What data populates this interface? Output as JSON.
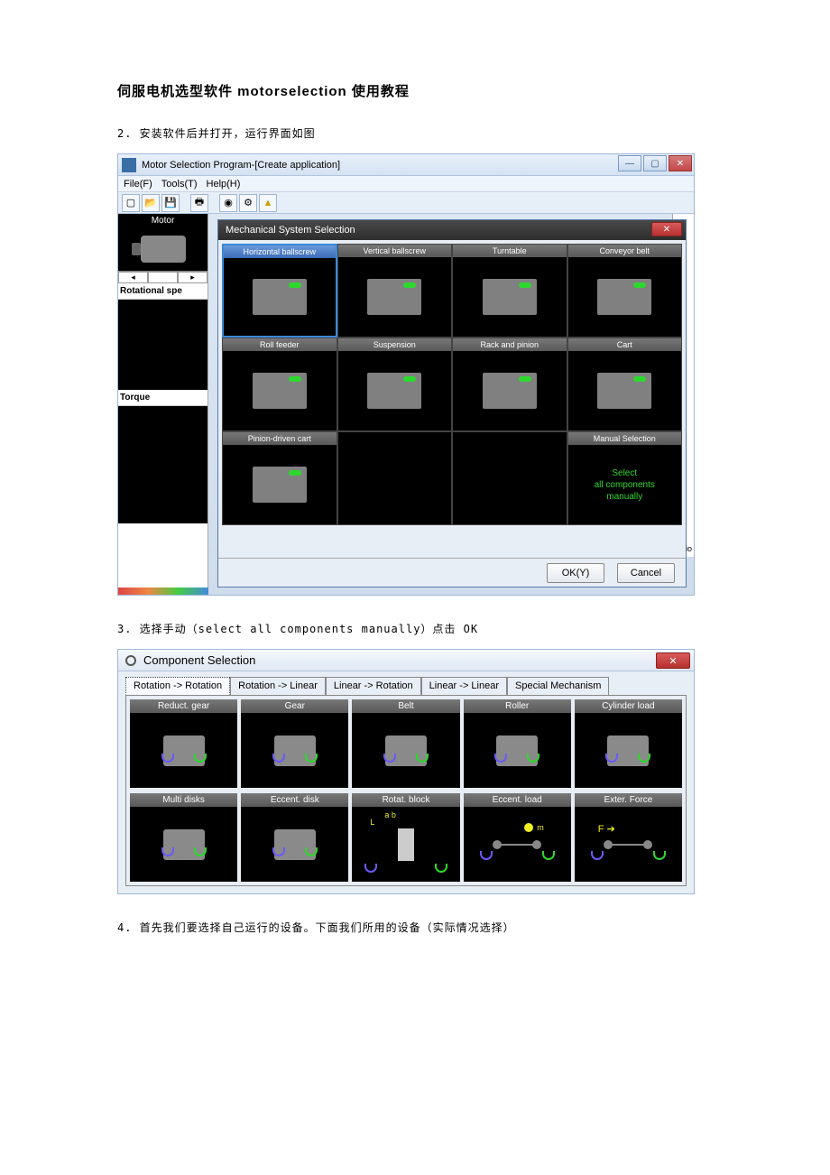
{
  "doc": {
    "title": "伺服电机选型软件 motorselection 使用教程",
    "step2": "2. 安装软件后并打开，运行界面如图",
    "step3": "3. 选择手动（select all components manually）点击 OK",
    "step4": "4. 首先我们要选择自己运行的设备。下面我们所用的设备（实际情况选择）"
  },
  "screenshot1": {
    "window_title": "Motor Selection Program-[Create application]",
    "menu": {
      "file": "File(F)",
      "tools": "Tools(T)",
      "help": "Help(H)"
    },
    "sidebar": {
      "motor_hdr": "Motor",
      "rot_label": "Rotational spe",
      "torque_label": "Torque"
    },
    "right_label": "ratio",
    "dialog": {
      "title": "Mechanical System Selection",
      "cells": [
        {
          "label": "Horizontal ballscrew",
          "selected": true
        },
        {
          "label": "Vertical ballscrew"
        },
        {
          "label": "Turntable"
        },
        {
          "label": "Conveyor belt"
        },
        {
          "label": "Roll feeder"
        },
        {
          "label": "Suspension"
        },
        {
          "label": "Rack and pinion"
        },
        {
          "label": "Cart"
        },
        {
          "label": "Pinion-driven cart"
        },
        {
          "label": "",
          "empty": true
        },
        {
          "label": "",
          "empty": true
        },
        {
          "label": "Manual Selection",
          "manual": true,
          "line1": "Select",
          "line2": "all components",
          "line3": "manually"
        }
      ],
      "ok": "OK(Y)",
      "cancel": "Cancel"
    },
    "colors": {
      "accent_green": "#2dd82d",
      "win_blue": "#3a6ab8"
    }
  },
  "screenshot2": {
    "title": "Component Selection",
    "tabs": [
      {
        "label": "Rotation -> Rotation",
        "active": true
      },
      {
        "label": "Rotation -> Linear"
      },
      {
        "label": "Linear -> Rotation"
      },
      {
        "label": "Linear -> Linear"
      },
      {
        "label": "Special Mechanism"
      }
    ],
    "row1": [
      {
        "label": "Reduct. gear"
      },
      {
        "label": "Gear"
      },
      {
        "label": "Belt"
      },
      {
        "label": "Roller"
      },
      {
        "label": "Cylinder load"
      }
    ],
    "row2": [
      {
        "label": "Multi disks"
      },
      {
        "label": "Eccent. disk"
      },
      {
        "label": "Rotat. block",
        "sub_a": "a",
        "sub_b": "b",
        "sub_L": "L"
      },
      {
        "label": "Eccent. load",
        "sub_m": "m"
      },
      {
        "label": "Exter. Force",
        "sub_F": "F"
      }
    ],
    "colors": {
      "arc_left": "#6a5af8",
      "arc_right": "#2dd82d",
      "marker": "#eeee22"
    }
  }
}
